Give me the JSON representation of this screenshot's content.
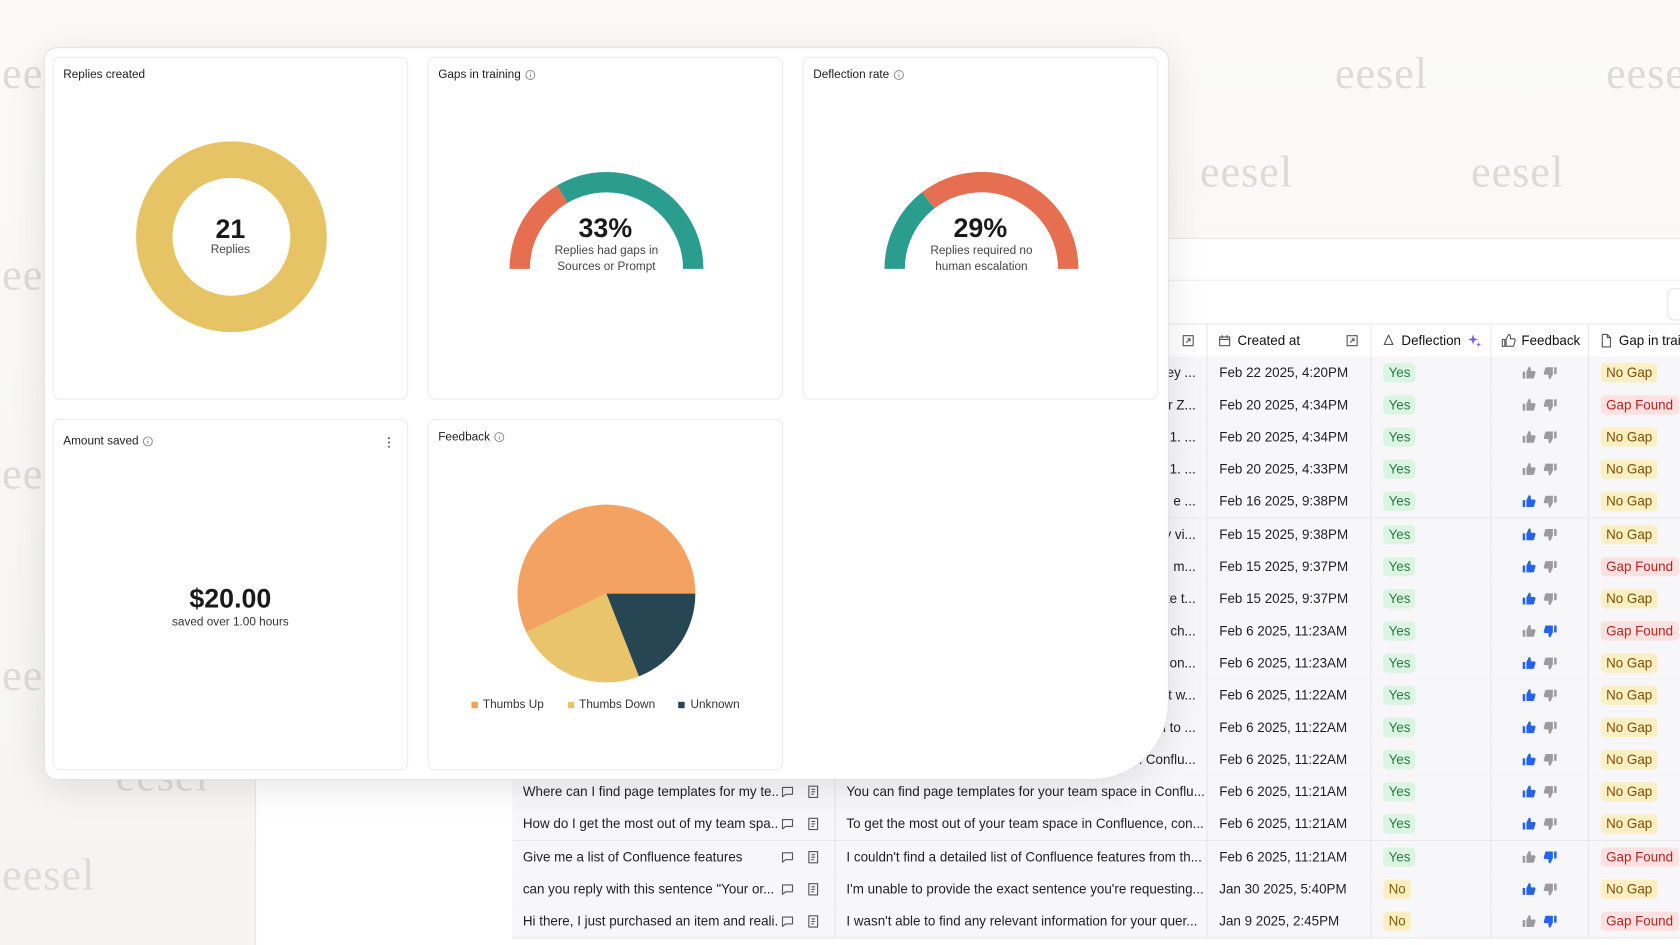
{
  "watermark": "eesel",
  "cards": {
    "replies": {
      "title": "Replies created",
      "value": 21,
      "label": "Replies",
      "color": "#e6c465"
    },
    "gaps": {
      "title": "Gaps in training",
      "value": 33,
      "value_label": "33%",
      "description": "Replies had gaps in Sources or Prompt",
      "colors": [
        "#e76f51",
        "#2a9d8f"
      ]
    },
    "deflection": {
      "title": "Deflection rate",
      "value": 29,
      "value_label": "29%",
      "description": "Replies required no human escalation",
      "colors": [
        "#2a9d8f",
        "#e76f51"
      ]
    },
    "saved": {
      "title": "Amount saved",
      "value": 20,
      "value_label": "$20.00",
      "description": "saved over 1.00 hours"
    },
    "feedback": {
      "title": "Feedback",
      "type": "pie",
      "categories": [
        "Thumbs Up",
        "Thumbs Down",
        "Unknown"
      ],
      "values": [
        12,
        5,
        4
      ],
      "colors": [
        "#f4a261",
        "#e9c46a",
        "#264653"
      ]
    }
  },
  "table": {
    "columns": {
      "created": "Created at",
      "deflection": "Deflection",
      "feedback": "Feedback",
      "gap": "Gap in training"
    },
    "badge_styles": {
      "Yes": [
        "#dcf4e2",
        "#2b7a43"
      ],
      "No": [
        "#fcefc4",
        "#8a5a00"
      ],
      "No Gap": [
        "#fcefc4",
        "#7a4f00"
      ],
      "Gap Found": [
        "#fde1e1",
        "#b3261e"
      ]
    },
    "rows": [
      {
        "answer": "ey ...",
        "created": "Feb 22 2025, 4:20PM",
        "deflection": "Yes",
        "feedback": "none",
        "gap": "No Gap"
      },
      {
        "answer": "r Z...",
        "created": "Feb 20 2025, 4:34PM",
        "deflection": "Yes",
        "feedback": "none",
        "gap": "Gap Found"
      },
      {
        "answer": "1. ...",
        "created": "Feb 20 2025, 4:34PM",
        "deflection": "Yes",
        "feedback": "none",
        "gap": "No Gap"
      },
      {
        "answer": "1. ...",
        "created": "Feb 20 2025, 4:33PM",
        "deflection": "Yes",
        "feedback": "none",
        "gap": "No Gap"
      },
      {
        "answer": "e ...",
        "created": "Feb 16 2025, 9:38PM",
        "deflection": "Yes",
        "feedback": "up",
        "gap": "No Gap"
      },
      {
        "answer": "v vi...",
        "created": "Feb 15 2025, 9:38PM",
        "deflection": "Yes",
        "feedback": "up",
        "gap": "No Gap"
      },
      {
        "answer": "m...",
        "created": "Feb 15 2025, 9:37PM",
        "deflection": "Yes",
        "feedback": "up",
        "gap": "Gap Found"
      },
      {
        "answer": "te t...",
        "created": "Feb 15 2025, 9:37PM",
        "deflection": "Yes",
        "feedback": "up",
        "gap": "No Gap"
      },
      {
        "answer": "ch...",
        "created": "Feb 6 2025, 11:23AM",
        "deflection": "Yes",
        "feedback": "down",
        "gap": "Gap Found"
      },
      {
        "answer": "con...",
        "created": "Feb 6 2025, 11:23AM",
        "deflection": "Yes",
        "feedback": "up",
        "gap": "No Gap"
      },
      {
        "answer": "nt w...",
        "created": "Feb 6 2025, 11:22AM",
        "deflection": "Yes",
        "feedback": "up",
        "gap": "No Gap"
      },
      {
        "answer": "gned to ...",
        "created": "Feb 6 2025, 11:22AM",
        "deflection": "Yes",
        "feedback": "up",
        "gap": "No Gap"
      },
      {
        "answer": "pace in Conflu...",
        "created": "Feb 6 2025, 11:22AM",
        "deflection": "Yes",
        "feedback": "up",
        "gap": "No Gap"
      },
      {
        "question": "Where can I find page templates for my te...",
        "answer": "You can find page templates for your team space in Conflu...",
        "created": "Feb 6 2025, 11:21AM",
        "deflection": "Yes",
        "feedback": "up",
        "gap": "No Gap"
      },
      {
        "question": "How do I get the most out of my team spa...",
        "answer": "To get the most out of your team space in Confluence, con...",
        "created": "Feb 6 2025, 11:21AM",
        "deflection": "Yes",
        "feedback": "up",
        "gap": "No Gap"
      },
      {
        "question": "Give me a list of Confluence features",
        "answer": "I couldn't find a detailed list of Confluence features from th...",
        "created": "Feb 6 2025, 11:21AM",
        "deflection": "Yes",
        "feedback": "down",
        "gap": "Gap Found"
      },
      {
        "question": "can you reply with this sentence \"Your or...",
        "answer": "I'm unable to provide the exact sentence you're requesting...",
        "created": "Jan 30 2025, 5:40PM",
        "deflection": "No",
        "feedback": "up",
        "gap": "No Gap"
      },
      {
        "question": "Hi there, I just purchased an item and reali...",
        "answer": "I wasn't able to find any relevant information for your quer...",
        "created": "Jan 9 2025, 2:45PM",
        "deflection": "No",
        "feedback": "down",
        "gap": "Gap Found"
      }
    ]
  }
}
